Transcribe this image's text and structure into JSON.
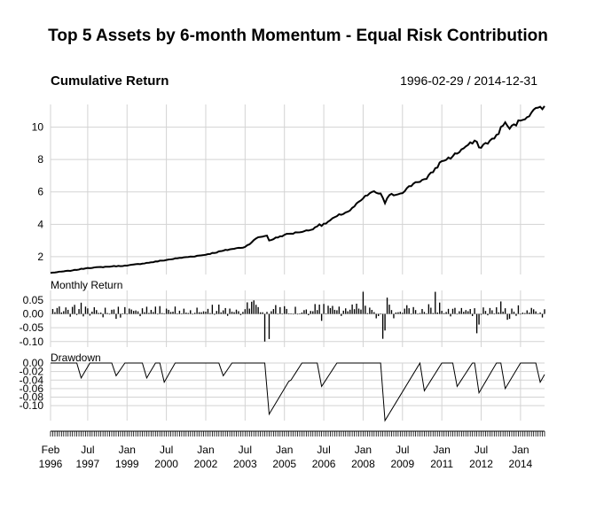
{
  "title": "Top 5 Assets by 6-month Momentum - Equal Risk Contribution",
  "date_range": "1996-02-29 / 2014-12-31",
  "chart_data": [
    {
      "type": "line",
      "panel": "Cumulative Return",
      "title": "Cumulative Return",
      "ylim": [
        0.9,
        11.4
      ],
      "yticks": [
        2,
        4,
        6,
        8,
        10
      ],
      "grid": true,
      "x_start": "1996-02",
      "x_end": "2014-12",
      "frequency": "monthly",
      "keypoints": [
        {
          "date": "1996-02",
          "value": 1.0
        },
        {
          "date": "1996-12",
          "value": 1.15
        },
        {
          "date": "1997-07",
          "value": 1.3
        },
        {
          "date": "1998-06",
          "value": 1.4
        },
        {
          "date": "1999-01",
          "value": 1.45
        },
        {
          "date": "1999-12",
          "value": 1.65
        },
        {
          "date": "2000-12",
          "value": 1.9
        },
        {
          "date": "2001-12",
          "value": 2.1
        },
        {
          "date": "2002-12",
          "value": 2.45
        },
        {
          "date": "2003-07",
          "value": 2.6
        },
        {
          "date": "2004-01",
          "value": 3.2
        },
        {
          "date": "2004-05",
          "value": 3.3
        },
        {
          "date": "2004-06",
          "value": 3.0
        },
        {
          "date": "2005-01",
          "value": 3.35
        },
        {
          "date": "2005-07",
          "value": 3.5
        },
        {
          "date": "2006-01",
          "value": 3.65
        },
        {
          "date": "2006-05",
          "value": 4.0
        },
        {
          "date": "2006-06",
          "value": 3.9
        },
        {
          "date": "2007-01",
          "value": 4.5
        },
        {
          "date": "2007-07",
          "value": 4.85
        },
        {
          "date": "2008-01",
          "value": 5.6
        },
        {
          "date": "2008-05",
          "value": 6.0
        },
        {
          "date": "2008-09",
          "value": 5.9
        },
        {
          "date": "2008-11",
          "value": 5.3
        },
        {
          "date": "2009-01",
          "value": 5.8
        },
        {
          "date": "2009-06",
          "value": 5.9
        },
        {
          "date": "2010-01",
          "value": 6.6
        },
        {
          "date": "2010-06",
          "value": 6.8
        },
        {
          "date": "2011-01",
          "value": 7.9
        },
        {
          "date": "2011-06",
          "value": 8.2
        },
        {
          "date": "2012-01",
          "value": 8.9
        },
        {
          "date": "2012-05",
          "value": 9.1
        },
        {
          "date": "2012-06",
          "value": 8.75
        },
        {
          "date": "2013-01",
          "value": 9.3
        },
        {
          "date": "2013-06",
          "value": 10.3
        },
        {
          "date": "2013-08",
          "value": 9.9
        },
        {
          "date": "2014-01",
          "value": 10.4
        },
        {
          "date": "2014-06",
          "value": 10.9
        },
        {
          "date": "2014-09",
          "value": 11.2
        },
        {
          "date": "2014-12",
          "value": 11.3
        }
      ]
    },
    {
      "type": "bar",
      "panel": "Monthly Return",
      "title": "Monthly Return",
      "ylim": [
        -0.12,
        0.085
      ],
      "yticks": [
        0.05,
        0.0,
        -0.05,
        -0.1
      ],
      "ytick_labels": [
        "0.05",
        "0.00",
        "-0.05",
        "-0.10"
      ],
      "grid": true,
      "notable_values": [
        {
          "date": "2004-04",
          "value": -0.1
        },
        {
          "date": "2008-10",
          "value": -0.09
        },
        {
          "date": "2012-05",
          "value": -0.07
        },
        {
          "date": "2008-01",
          "value": 0.08
        },
        {
          "date": "2010-10",
          "value": 0.08
        }
      ],
      "seed": 7
    },
    {
      "type": "area",
      "panel": "Drawdown",
      "title": "Drawdown",
      "ylim": [
        -0.135,
        0.0
      ],
      "yticks": [
        0.0,
        -0.02,
        -0.04,
        -0.06,
        -0.08,
        -0.1
      ],
      "ytick_labels": [
        "0.00",
        "-0.02",
        "-0.04",
        "-0.06",
        "-0.08",
        "-0.10"
      ],
      "grid": true,
      "troughs": [
        {
          "date": "1997-04",
          "value": -0.035
        },
        {
          "date": "1998-08",
          "value": -0.03
        },
        {
          "date": "1999-10",
          "value": -0.035
        },
        {
          "date": "2000-06",
          "value": -0.045
        },
        {
          "date": "2002-09",
          "value": -0.03
        },
        {
          "date": "2004-06",
          "value": -0.12
        },
        {
          "date": "2005-04",
          "value": -0.04
        },
        {
          "date": "2006-06",
          "value": -0.055
        },
        {
          "date": "2008-11",
          "value": -0.135
        },
        {
          "date": "2009-03",
          "value": -0.08
        },
        {
          "date": "2010-05",
          "value": -0.065
        },
        {
          "date": "2011-08",
          "value": -0.055
        },
        {
          "date": "2012-06",
          "value": -0.07
        },
        {
          "date": "2013-06",
          "value": -0.06
        },
        {
          "date": "2014-10",
          "value": -0.045
        }
      ]
    }
  ],
  "x_axis": {
    "labels": [
      {
        "top": "Feb",
        "bottom": "1996",
        "date": "1996-02"
      },
      {
        "top": "Jul",
        "bottom": "1997",
        "date": "1997-07"
      },
      {
        "top": "Jan",
        "bottom": "1999",
        "date": "1999-01"
      },
      {
        "top": "Jul",
        "bottom": "2000",
        "date": "2000-07"
      },
      {
        "top": "Jan",
        "bottom": "2002",
        "date": "2002-01"
      },
      {
        "top": "Jul",
        "bottom": "2003",
        "date": "2003-07"
      },
      {
        "top": "Jan",
        "bottom": "2005",
        "date": "2005-01"
      },
      {
        "top": "Jul",
        "bottom": "2006",
        "date": "2006-07"
      },
      {
        "top": "Jan",
        "bottom": "2008",
        "date": "2008-01"
      },
      {
        "top": "Jul",
        "bottom": "2009",
        "date": "2009-07"
      },
      {
        "top": "Jan",
        "bottom": "2011",
        "date": "2011-01"
      },
      {
        "top": "Jul",
        "bottom": "2012",
        "date": "2012-07"
      },
      {
        "top": "Jan",
        "bottom": "2014",
        "date": "2014-01"
      }
    ]
  },
  "colors": {
    "line": "#000000",
    "grid": "#d3d3d3",
    "background": "#ffffff"
  }
}
